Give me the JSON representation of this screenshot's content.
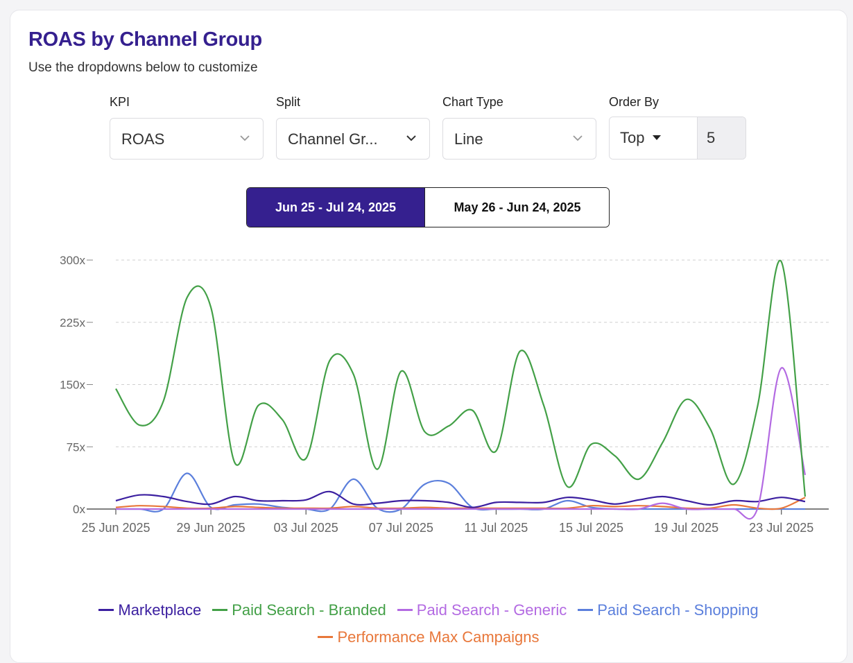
{
  "header": {
    "title": "ROAS by Channel Group",
    "subtitle": "Use the dropdowns below to customize"
  },
  "controls": {
    "kpi": {
      "label": "KPI",
      "value": "ROAS"
    },
    "split": {
      "label": "Split",
      "value": "Channel Gr..."
    },
    "chart_type": {
      "label": "Chart Type",
      "value": "Line"
    },
    "order_by": {
      "label": "Order By",
      "value": "Top",
      "count": "5"
    }
  },
  "date_ranges": {
    "active": "Jun 25 - Jul 24, 2025",
    "inactive": "May 26 - Jun 24, 2025"
  },
  "colors": {
    "accent": "#35208f",
    "Marketplace": "#3b1fa0",
    "Paid Search - Branded": "#43a047",
    "Paid Search - Generic": "#b36ae2",
    "Paid Search - Shopping": "#5b7fdc",
    "Performance Max Campaigns": "#e8773a"
  },
  "chart_data": {
    "type": "line",
    "title": "ROAS by Channel Group",
    "x": [
      "25 Jun 2025",
      "26 Jun 2025",
      "27 Jun 2025",
      "28 Jun 2025",
      "29 Jun 2025",
      "30 Jun 2025",
      "01 Jul 2025",
      "02 Jul 2025",
      "03 Jul 2025",
      "04 Jul 2025",
      "05 Jul 2025",
      "06 Jul 2025",
      "07 Jul 2025",
      "08 Jul 2025",
      "09 Jul 2025",
      "10 Jul 2025",
      "11 Jul 2025",
      "12 Jul 2025",
      "13 Jul 2025",
      "14 Jul 2025",
      "15 Jul 2025",
      "16 Jul 2025",
      "17 Jul 2025",
      "18 Jul 2025",
      "19 Jul 2025",
      "20 Jul 2025",
      "21 Jul 2025",
      "22 Jul 2025",
      "23 Jul 2025",
      "24 Jul 2025"
    ],
    "x_ticks": [
      "25 Jun 2025",
      "29 Jun 2025",
      "03 Jul 2025",
      "07 Jul 2025",
      "11 Jul 2025",
      "15 Jul 2025",
      "19 Jul 2025",
      "23 Jul 2025"
    ],
    "y_ticks": [
      "0x",
      "75x",
      "150x",
      "225x",
      "300x"
    ],
    "ylim": [
      0,
      300
    ],
    "grid": "horizontal dashed",
    "legend_position": "bottom",
    "series": [
      {
        "name": "Marketplace",
        "values": [
          10,
          17,
          15,
          9,
          6,
          15,
          10,
          10,
          11,
          21,
          6,
          7,
          10,
          10,
          8,
          2,
          8,
          8,
          8,
          14,
          11,
          6,
          11,
          15,
          10,
          5,
          10,
          9,
          14,
          9
        ]
      },
      {
        "name": "Paid Search - Branded",
        "values": [
          145,
          101,
          130,
          255,
          243,
          56,
          125,
          108,
          61,
          179,
          162,
          48,
          166,
          93,
          100,
          119,
          70,
          190,
          125,
          27,
          78,
          64,
          36,
          80,
          132,
          97,
          30,
          124,
          298,
          15
        ]
      },
      {
        "name": "Paid Search - Generic",
        "values": [
          0,
          0,
          0,
          0,
          0,
          0,
          0,
          0,
          0,
          0,
          0,
          0,
          0,
          0,
          0,
          0,
          0,
          0,
          0,
          0,
          0,
          0,
          0,
          7,
          0,
          0,
          0,
          1,
          170,
          41
        ]
      },
      {
        "name": "Paid Search - Shopping",
        "values": [
          0,
          0,
          0,
          43,
          2,
          5,
          6,
          2,
          0,
          0,
          36,
          1,
          0,
          30,
          31,
          2,
          0,
          0,
          0,
          10,
          2,
          0,
          0,
          0,
          0,
          0,
          0,
          0,
          0,
          0
        ]
      },
      {
        "name": "Performance Max Campaigns",
        "values": [
          2,
          4,
          3,
          1,
          1,
          3,
          2,
          1,
          1,
          1,
          3,
          1,
          1,
          2,
          1,
          1,
          1,
          1,
          1,
          1,
          4,
          3,
          4,
          3,
          1,
          1,
          5,
          1,
          1,
          14
        ]
      }
    ]
  }
}
